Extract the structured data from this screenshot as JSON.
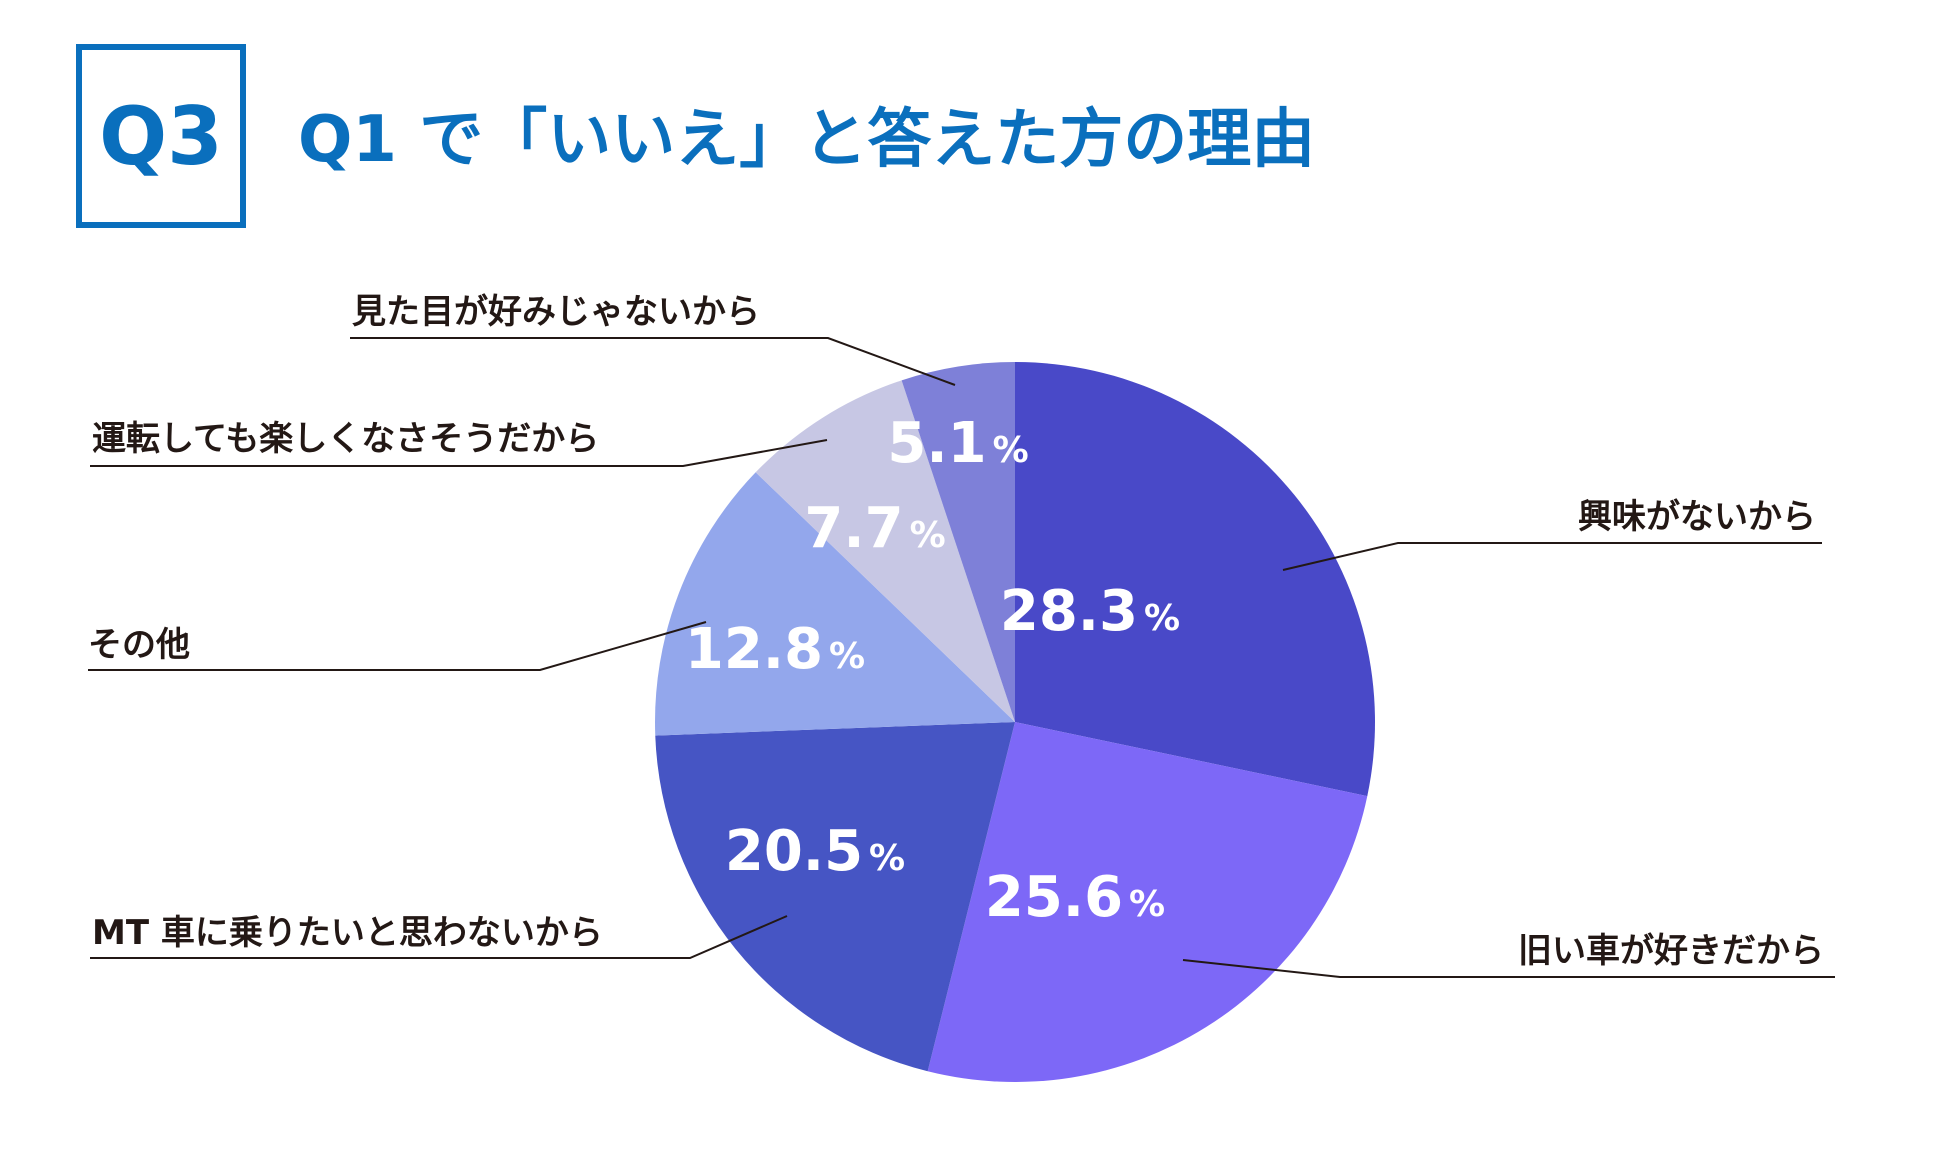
{
  "badge": "Q3",
  "title": "Q1 で「いいえ」と答えた方の理由",
  "chart_data": {
    "type": "pie",
    "title": "Q1 で「いいえ」と答えた方の理由",
    "unit": "%",
    "slices": [
      {
        "label": "興味がないから",
        "value": 28.3,
        "display": "28.3",
        "color": "#4949c8"
      },
      {
        "label": "旧い車が好きだから",
        "value": 25.6,
        "display": "25.6",
        "color": "#7d68f7"
      },
      {
        "label": "MT 車に乗りたいと思わないから",
        "value": 20.5,
        "display": "20.5",
        "color": "#4655c4"
      },
      {
        "label": "その他",
        "value": 12.8,
        "display": "12.8",
        "color": "#93a7ec"
      },
      {
        "label": "運転しても楽しくなさそうだから",
        "value": 7.7,
        "display": "7.7",
        "color": "#c7c7e4"
      },
      {
        "label": "見た目が好みじゃないから",
        "value": 5.1,
        "display": "5.1",
        "color": "#7e80d8"
      }
    ]
  }
}
